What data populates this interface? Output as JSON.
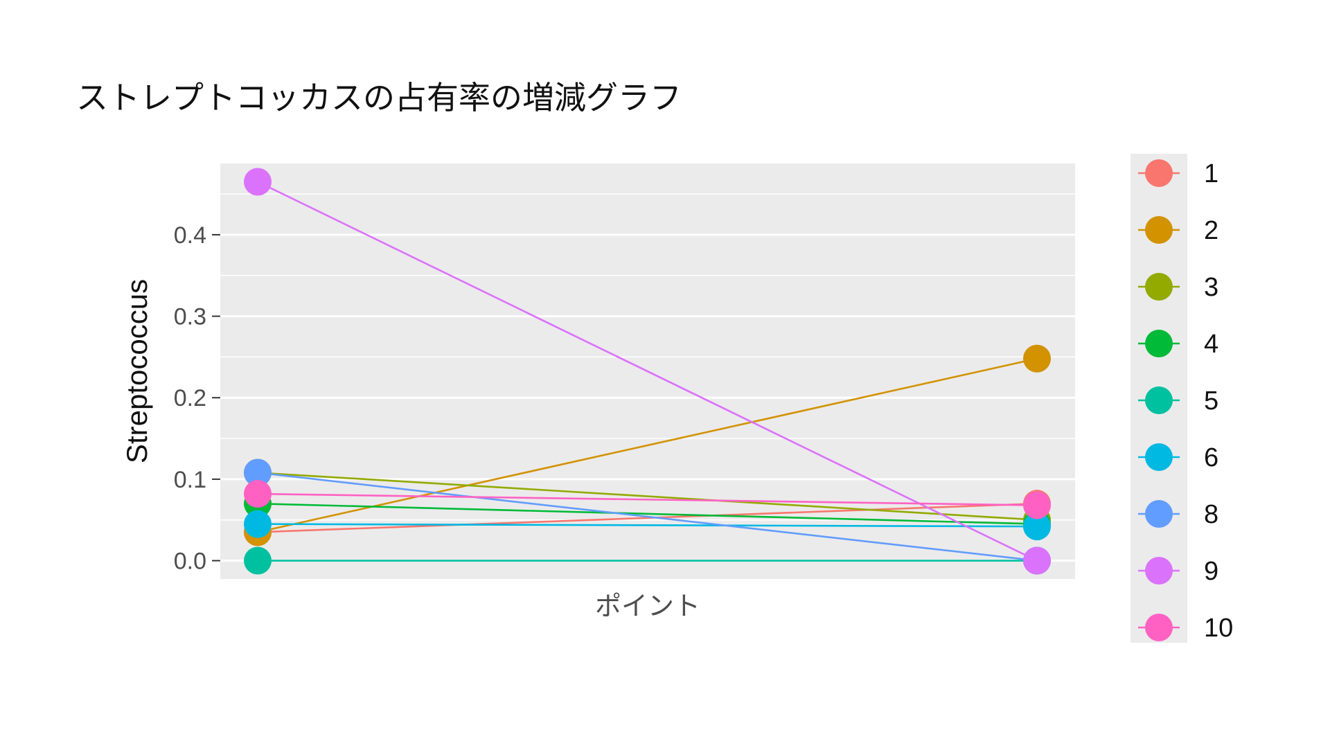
{
  "title": "ストレプトコッカスの占有率の増減グラフ",
  "chart_data": {
    "type": "line",
    "xlabel": "ポイント",
    "ylabel": "Streptococcus",
    "ylim": [
      -0.0225,
      0.4875
    ],
    "yticks": [
      "0.0",
      "0.1",
      "0.2",
      "0.3",
      "0.4"
    ],
    "ytick_values": [
      0.0,
      0.1,
      0.2,
      0.3,
      0.4
    ],
    "x": [
      1,
      2
    ],
    "grid": true,
    "legend": "right",
    "series": [
      {
        "name": "1",
        "color": "#F8766D",
        "values": [
          0.035,
          0.07
        ]
      },
      {
        "name": "2",
        "color": "#D39200",
        "values": [
          0.035,
          0.248
        ]
      },
      {
        "name": "3",
        "color": "#93AA00",
        "values": [
          0.108,
          0.05
        ]
      },
      {
        "name": "4",
        "color": "#00BA38",
        "values": [
          0.07,
          0.045
        ]
      },
      {
        "name": "5",
        "color": "#00C19F",
        "values": [
          0.0,
          0.0
        ]
      },
      {
        "name": "6",
        "color": "#00B9E3",
        "values": [
          0.045,
          0.042
        ]
      },
      {
        "name": "8",
        "color": "#619CFF",
        "values": [
          0.108,
          0.0
        ]
      },
      {
        "name": "9",
        "color": "#DB72FB",
        "values": [
          0.465,
          0.0
        ]
      },
      {
        "name": "10",
        "color": "#FF61C3",
        "values": [
          0.082,
          0.068
        ]
      }
    ]
  }
}
